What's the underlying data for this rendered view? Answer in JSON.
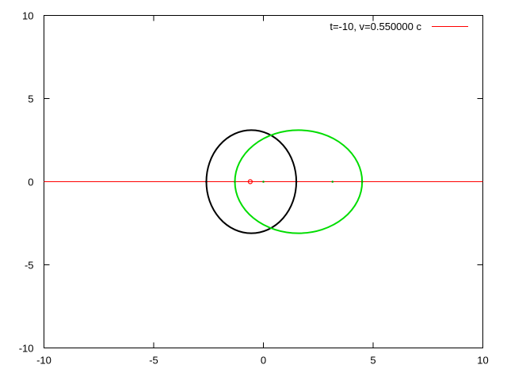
{
  "chart_data": {
    "type": "line",
    "title": "",
    "xlabel": "",
    "ylabel": "",
    "xlim": [
      -10,
      10
    ],
    "ylim": [
      -10,
      10
    ],
    "xticks": [
      -10,
      -5,
      0,
      5,
      10
    ],
    "yticks": [
      -10,
      -5,
      0,
      5,
      10
    ],
    "grid": false,
    "legend_position": "top-right",
    "legend": {
      "label": "t=-10, v=0.550000 c",
      "color": "#ff0000"
    },
    "series": [
      {
        "name": "t=-10, v=0.550000 c",
        "kind": "horizontal-line",
        "y": 0,
        "color": "#ff0000"
      },
      {
        "kind": "ellipse",
        "cx": -0.55,
        "cy": 0,
        "rx": 2.05,
        "ry": 3.1,
        "color": "#000000"
      },
      {
        "kind": "ellipse",
        "cx": 1.6,
        "cy": 0,
        "rx": 2.9,
        "ry": 3.1,
        "color": "#00dd00"
      }
    ],
    "points": [
      {
        "x": -0.6,
        "y": 0,
        "style": "open-circle",
        "color": "#ff0000"
      },
      {
        "x": 0.0,
        "y": 0,
        "style": "dot",
        "color": "#00aa00"
      },
      {
        "x": 3.15,
        "y": 0,
        "style": "dot",
        "color": "#00aa00"
      },
      {
        "x": -2.6,
        "y": 0,
        "style": "dot",
        "color": "#000000"
      },
      {
        "x": 1.5,
        "y": 0,
        "style": "dot",
        "color": "#000000"
      },
      {
        "x": -1.3,
        "y": 0,
        "style": "dot",
        "color": "#00aa00"
      },
      {
        "x": 4.5,
        "y": 0,
        "style": "dot",
        "color": "#00aa00"
      }
    ]
  }
}
